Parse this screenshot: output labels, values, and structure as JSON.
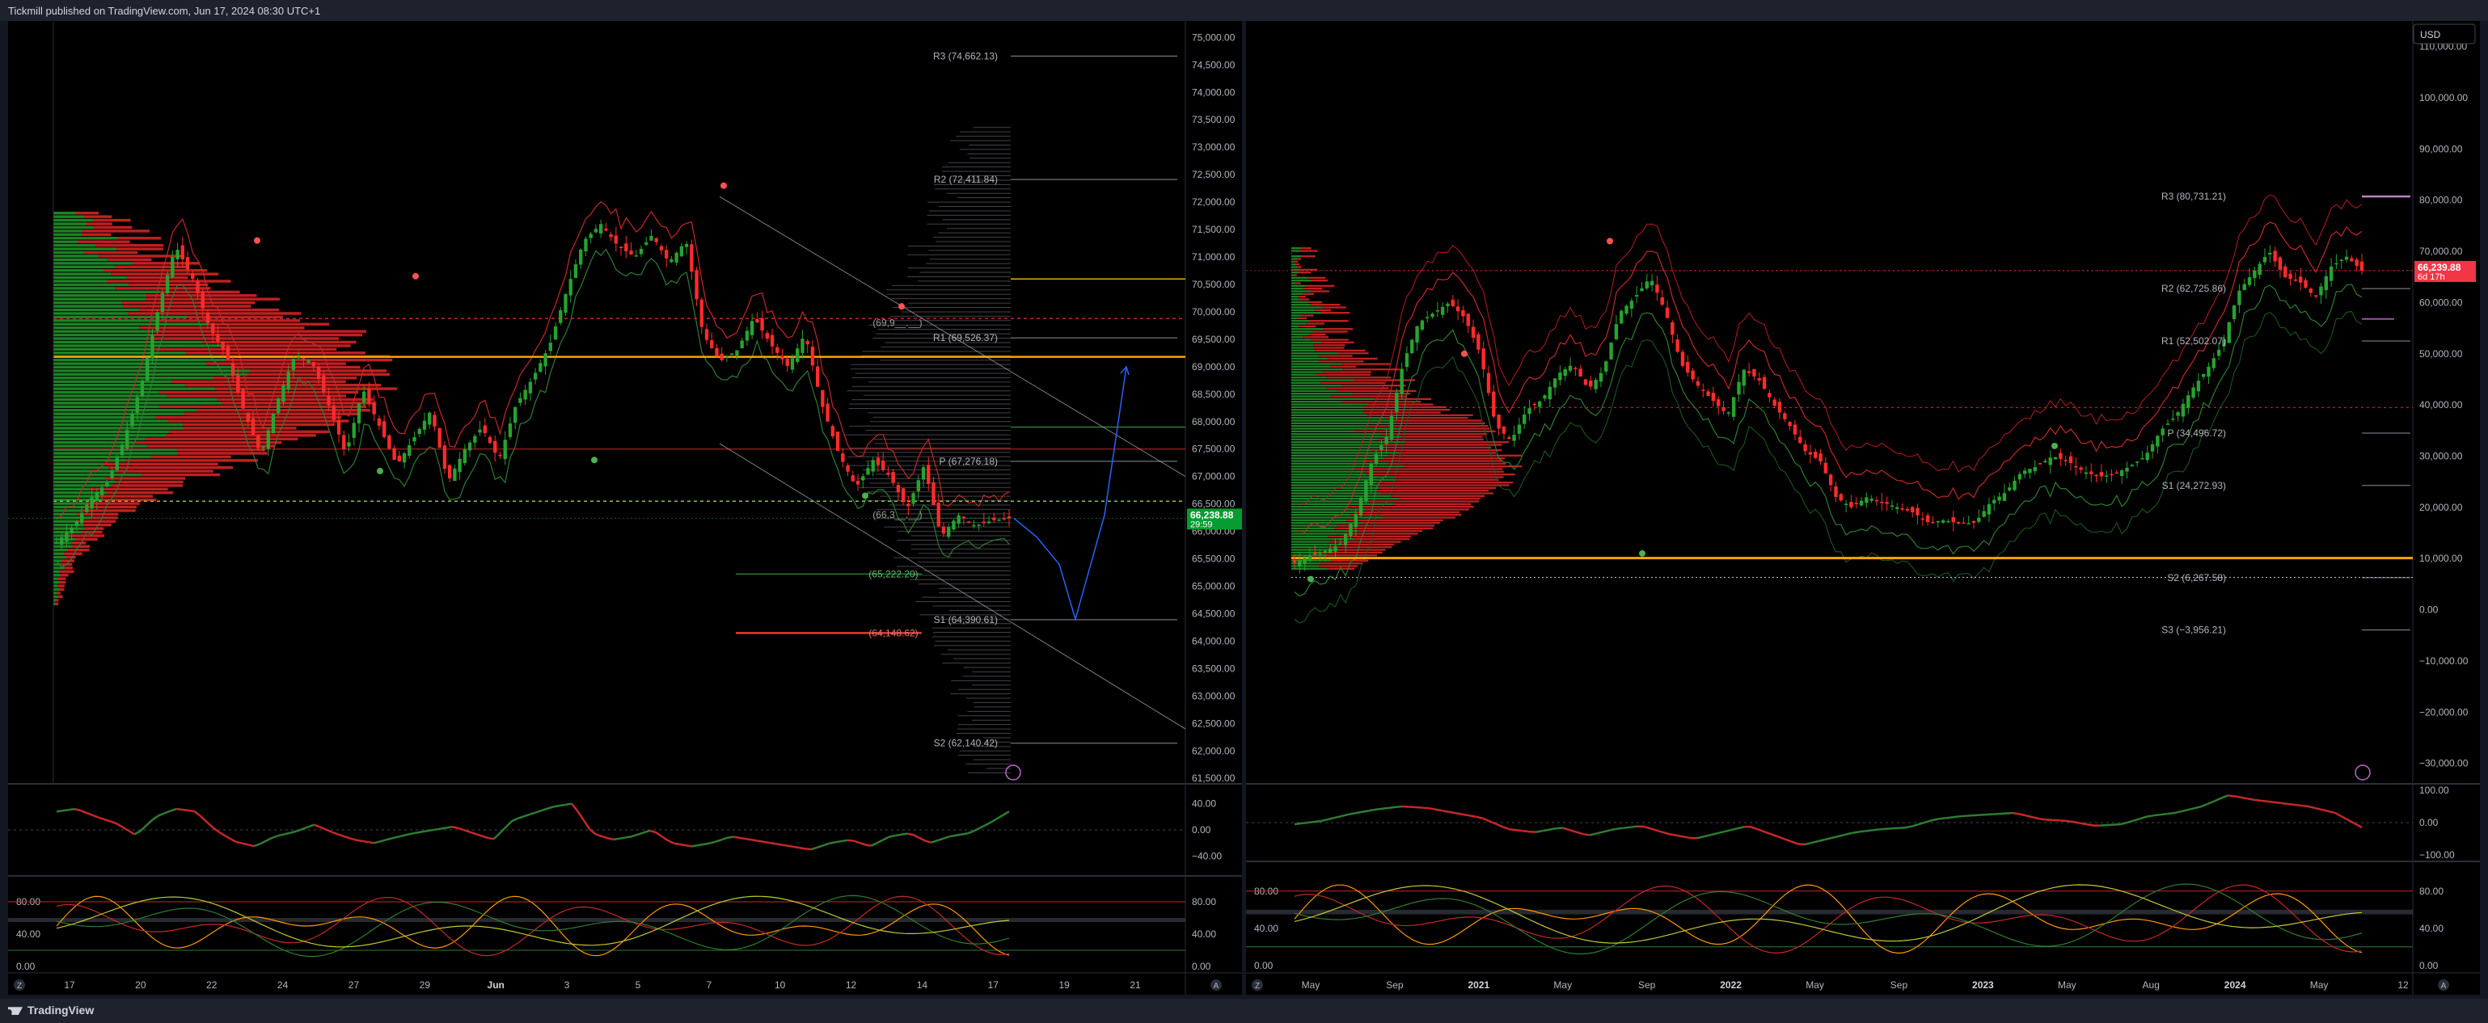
{
  "header": {
    "published": "Tickmill published on TradingView.com, Jun 17, 2024 08:30 UTC+1"
  },
  "footer": {
    "brand": "TradingView"
  },
  "colors": {
    "up": "#26a32f",
    "down": "#ff2b2b",
    "pivot_line": "#b2b5be",
    "orange": "#f7a600",
    "blue": "#2962ff",
    "purple": "#ba68c8"
  },
  "chart_data": [
    {
      "type": "candlestick",
      "panel": "left",
      "y_axis": {
        "ticks": [
          "75,000.00",
          "74,500.00",
          "74,000.00",
          "73,500.00",
          "73,000.00",
          "72,500.00",
          "72,000.00",
          "71,500.00",
          "71,000.00",
          "70,500.00",
          "70,000.00",
          "69,500.00",
          "69,000.00",
          "68,500.00",
          "68,000.00",
          "67,500.00",
          "67,000.00",
          "66,500.00",
          "66,000.00",
          "65,500.00",
          "65,000.00",
          "64,500.00",
          "64,000.00",
          "63,500.00",
          "63,000.00",
          "62,500.00",
          "62,000.00",
          "61,500.00"
        ],
        "range": [
          61400,
          75300
        ]
      },
      "x_axis": {
        "ticks": [
          "17",
          "20",
          "22",
          "24",
          "27",
          "29",
          "Jun",
          "3",
          "5",
          "7",
          "10",
          "12",
          "14",
          "17",
          "19",
          "21"
        ]
      },
      "last_price": {
        "value": "66,238.88",
        "countdown": "29:59"
      },
      "pivot_levels": [
        {
          "label": "R3 (74,662.13)",
          "value": 74662.13
        },
        {
          "label": "R2 (72,411.84)",
          "value": 72411.84
        },
        {
          "label": "R1 (69,526.37)",
          "value": 69526.37
        },
        {
          "label": "P (67,276.18)",
          "value": 67276.18
        },
        {
          "label": "S1 (64,390.61)",
          "value": 64390.61
        },
        {
          "label": "S2 (62,140.42)",
          "value": 62140.42
        }
      ],
      "faint_levels": [
        {
          "label": "(69,9__.__)",
          "value": 69800
        },
        {
          "label": "(66,3__.__)",
          "value": 66300
        },
        {
          "label": "(65,222.20)",
          "value": 65222.2
        },
        {
          "label": "(64,148.62)",
          "value": 64148.62
        }
      ],
      "horizontal_lines": {
        "orange": 69180,
        "red_dotted": 69880,
        "green_dotted": 66550,
        "red": 67500
      },
      "close_series": [
        65800,
        66100,
        66600,
        66900,
        67700,
        68700,
        70100,
        71200,
        70600,
        69700,
        69200,
        68200,
        67400,
        68400,
        69200,
        69100,
        68300,
        67400,
        68600,
        67900,
        67200,
        67700,
        68200,
        66900,
        67500,
        67900,
        67300,
        68300,
        68800,
        69400,
        70400,
        71300,
        71600,
        71200,
        71000,
        71400,
        70900,
        71300,
        69600,
        69100,
        69300,
        69900,
        69400,
        69000,
        69600,
        68300,
        67400,
        66800,
        67300,
        67000,
        66400,
        67200,
        65900,
        66300,
        66100,
        66200,
        66238.88
      ],
      "projection": [
        [
          66238.88
        ],
        [
          65900
        ],
        [
          65400
        ],
        [
          64400
        ],
        [
          66300
        ],
        [
          69000
        ]
      ]
    },
    {
      "type": "candlestick",
      "panel": "right",
      "currency": "USD",
      "y_axis": {
        "ticks": [
          "110,000.00",
          "100,000.00",
          "90,000.00",
          "80,000.00",
          "70,000.00",
          "60,000.00",
          "50,000.00",
          "40,000.00",
          "30,000.00",
          "20,000.00",
          "10,000.00",
          "0.00",
          "−10,000.00",
          "−20,000.00",
          "−30,000.00"
        ],
        "range": [
          -34000,
          115000
        ]
      },
      "x_axis": {
        "ticks": [
          "May",
          "Sep",
          "2021",
          "May",
          "Sep",
          "2022",
          "May",
          "Sep",
          "2023",
          "May",
          "Aug",
          "2024",
          "May",
          "12"
        ]
      },
      "last_price": {
        "value": "66,239.88",
        "countdown": "6d 17h"
      },
      "pivot_levels": [
        {
          "label": "R3 (80,731.21)",
          "value": 80731.21
        },
        {
          "label": "R2 (62,725.86)",
          "value": 62725.86
        },
        {
          "label": "R1 (52,502.07)",
          "value": 52502.07
        },
        {
          "label": "P (34,496.72)",
          "value": 34496.72
        },
        {
          "label": "S1 (24,272.93)",
          "value": 24272.93
        },
        {
          "label": "S2 (6,267.58)",
          "value": 6267.58
        },
        {
          "label": "S3 (−3,956.21)",
          "value": -3956.21
        }
      ],
      "close_series": [
        9200,
        10500,
        11500,
        13000,
        19000,
        29000,
        34000,
        48000,
        56000,
        58000,
        60000,
        57000,
        50000,
        36000,
        33000,
        39000,
        41000,
        46000,
        48000,
        43000,
        47000,
        58000,
        61000,
        65000,
        58000,
        48000,
        44000,
        41000,
        38000,
        47000,
        45000,
        40000,
        36000,
        31000,
        29000,
        22000,
        20000,
        22000,
        21000,
        20000,
        19000,
        17000,
        17500,
        16800,
        17000,
        21000,
        23000,
        27000,
        28000,
        30000,
        29000,
        27000,
        26000,
        26500,
        28000,
        30000,
        35000,
        38000,
        43000,
        47000,
        52000,
        62000,
        66000,
        70000,
        65000,
        64000,
        61000,
        67000,
        69000,
        66239.88
      ]
    },
    {
      "type": "line",
      "panel": "left-oscillator-1",
      "y_axis": {
        "ticks": [
          "40.00",
          "0.00",
          "−40.00"
        ],
        "range": [
          -70,
          70
        ]
      },
      "values": [
        28,
        32,
        20,
        10,
        -8,
        20,
        32,
        28,
        0,
        -18,
        -25,
        -10,
        -3,
        8,
        -5,
        -15,
        -20,
        -12,
        -5,
        0,
        5,
        -5,
        -15,
        15,
        25,
        35,
        40,
        -5,
        -15,
        -10,
        0,
        -20,
        -25,
        -20,
        -10,
        -15,
        -20,
        -25,
        -30,
        -20,
        -15,
        -25,
        -10,
        -5,
        -20,
        -10,
        -5,
        10,
        28
      ]
    },
    {
      "type": "line",
      "panel": "left-oscillator-2",
      "y_axis": {
        "ticks": [
          "80.00",
          "40.00",
          "0.00"
        ],
        "range": [
          -8,
          112
        ]
      },
      "levels": [
        80,
        60,
        55,
        20
      ]
    },
    {
      "type": "line",
      "panel": "right-oscillator-1",
      "y_axis": {
        "ticks": [
          "100.00",
          "0.00",
          "−100.00"
        ],
        "range": [
          -120,
          120
        ]
      },
      "values": [
        -5,
        5,
        25,
        40,
        50,
        45,
        30,
        15,
        -20,
        -30,
        -15,
        -40,
        -20,
        -10,
        -35,
        -50,
        -30,
        -10,
        -40,
        -70,
        -50,
        -30,
        -20,
        -15,
        10,
        20,
        25,
        30,
        10,
        5,
        -10,
        -5,
        20,
        30,
        50,
        85,
        70,
        60,
        50,
        30,
        -15
      ]
    },
    {
      "type": "line",
      "panel": "right-oscillator-2",
      "y_axis": {
        "ticks": [
          "80.00",
          "40.00",
          "0.00"
        ],
        "range": [
          -8,
          112
        ]
      },
      "levels": [
        80,
        60,
        55,
        20
      ]
    }
  ],
  "misc": {
    "tz_left": "Z",
    "tz_right": "A"
  }
}
